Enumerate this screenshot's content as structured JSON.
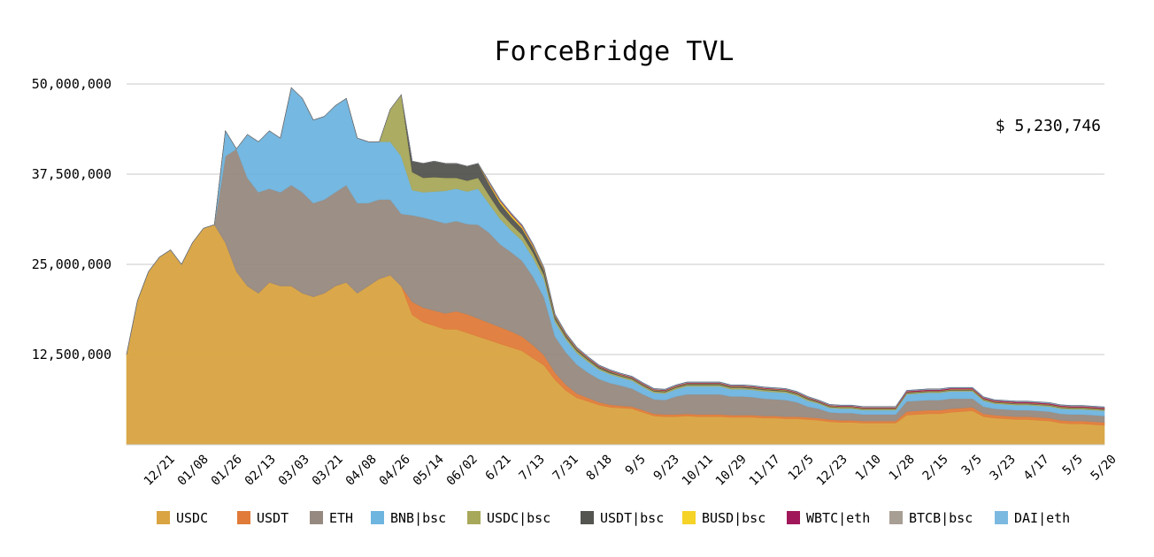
{
  "chart_data": {
    "type": "area",
    "stacked": true,
    "title": "ForceBridge TVL",
    "total_label": "$ 5,230,746",
    "xlabel": "",
    "ylabel": "",
    "ylim": [
      0,
      50000000
    ],
    "yticks": [
      12500000,
      25000000,
      37500000,
      50000000
    ],
    "ytick_labels": [
      "12,500,000",
      "25,000,000",
      "37,500,000",
      "50,000,000"
    ],
    "x_tick_labels": [
      "12/21",
      "01/08",
      "01/26",
      "02/13",
      "03/03",
      "03/21",
      "04/08",
      "04/26",
      "05/14",
      "06/02",
      "6/21",
      "7/13",
      "7/31",
      "8/18",
      "9/5",
      "9/23",
      "10/11",
      "10/29",
      "11/17",
      "12/5",
      "12/23",
      "1/10",
      "1/28",
      "2/15",
      "3/5",
      "3/23",
      "4/17",
      "5/5",
      "5/20"
    ],
    "grid": true,
    "legend_position": "bottom",
    "x": [
      "12/05",
      "12/09",
      "12/13",
      "12/17",
      "12/21",
      "12/25",
      "12/29",
      "01/02",
      "01/04",
      "01/06",
      "01/08",
      "01/12",
      "01/16",
      "01/20",
      "01/24",
      "01/26",
      "01/30",
      "02/03",
      "02/07",
      "02/11",
      "02/13",
      "02/17",
      "02/21",
      "02/25",
      "02/27",
      "03/01",
      "03/03",
      "03/07",
      "03/11",
      "03/15",
      "03/21",
      "03/27",
      "04/02",
      "04/08",
      "04/12",
      "04/16",
      "04/20",
      "04/24",
      "04/26",
      "04/28",
      "05/02",
      "05/06",
      "05/10",
      "05/14",
      "05/20",
      "05/26",
      "06/02",
      "06/10",
      "06/21",
      "07/01",
      "07/13",
      "07/22",
      "07/31",
      "08/09",
      "08/18",
      "08/27",
      "09/05",
      "09/14",
      "09/23",
      "10/02",
      "10/11",
      "10/20",
      "10/29",
      "11/07",
      "11/17",
      "11/26",
      "12/05",
      "12/14",
      "12/23",
      "01/01",
      "01/05",
      "01/10",
      "01/19",
      "01/28",
      "02/06",
      "02/15",
      "02/20",
      "02/25",
      "03/01",
      "03/05",
      "03/14",
      "03/23",
      "04/01",
      "04/10",
      "04/17",
      "04/24",
      "05/01",
      "05/05",
      "05/12",
      "05/20"
    ],
    "series": [
      {
        "name": "USDC",
        "color": "#D9A441",
        "values": [
          12500000,
          20000000,
          24000000,
          26000000,
          27000000,
          25000000,
          28000000,
          30000000,
          30500000,
          28000000,
          24000000,
          22000000,
          21000000,
          22500000,
          22000000,
          22000000,
          21000000,
          20500000,
          21000000,
          22000000,
          22500000,
          21000000,
          22000000,
          23000000,
          23500000,
          22000000,
          18000000,
          17000000,
          16500000,
          16000000,
          16000000,
          15500000,
          15000000,
          14500000,
          14000000,
          13500000,
          13000000,
          12000000,
          11000000,
          9000000,
          7500000,
          6500000,
          6000000,
          5500000,
          5200000,
          5100000,
          5000000,
          4500000,
          4000000,
          3900000,
          3900000,
          4000000,
          3900000,
          3900000,
          3900000,
          3800000,
          3800000,
          3800000,
          3700000,
          3700000,
          3600000,
          3600000,
          3500000,
          3400000,
          3200000,
          3100000,
          3100000,
          3000000,
          3000000,
          3000000,
          3000000,
          4100000,
          4200000,
          4300000,
          4300000,
          4500000,
          4600000,
          4700000,
          3900000,
          3700000,
          3600000,
          3500000,
          3500000,
          3400000,
          3300000,
          3000000,
          2900000,
          2900000,
          2800000,
          2700000
        ]
      },
      {
        "name": "USDT",
        "color": "#E07B39",
        "values": [
          0,
          0,
          0,
          0,
          0,
          0,
          0,
          0,
          0,
          0,
          0,
          0,
          0,
          0,
          0,
          0,
          0,
          0,
          0,
          0,
          0,
          0,
          0,
          0,
          0,
          0,
          1800000,
          2000000,
          2100000,
          2200000,
          2500000,
          2600000,
          2500000,
          2400000,
          2300000,
          2200000,
          2000000,
          1800000,
          1400000,
          1000000,
          800000,
          600000,
          500000,
          400000,
          350000,
          300000,
          300000,
          300000,
          300000,
          300000,
          300000,
          300000,
          300000,
          300000,
          300000,
          300000,
          300000,
          300000,
          300000,
          300000,
          300000,
          300000,
          300000,
          300000,
          300000,
          300000,
          300000,
          300000,
          300000,
          300000,
          300000,
          500000,
          500000,
          500000,
          500000,
          500000,
          500000,
          500000,
          400000,
          400000,
          400000,
          400000,
          400000,
          400000,
          400000,
          400000,
          400000,
          400000,
          400000,
          400000
        ]
      },
      {
        "name": "ETH",
        "color": "#968A80",
        "values": [
          0,
          0,
          0,
          0,
          0,
          0,
          0,
          0,
          0,
          12000000,
          17000000,
          15000000,
          14000000,
          13000000,
          13000000,
          14000000,
          14000000,
          13000000,
          13000000,
          13000000,
          13500000,
          12500000,
          11500000,
          11000000,
          10500000,
          10000000,
          12000000,
          12500000,
          12500000,
          12500000,
          12500000,
          12500000,
          13000000,
          12500000,
          11500000,
          11000000,
          10500000,
          9500000,
          8000000,
          5000000,
          4500000,
          4000000,
          3500000,
          3200000,
          3000000,
          2800000,
          2500000,
          2200000,
          2000000,
          2000000,
          2500000,
          2700000,
          2800000,
          2800000,
          2800000,
          2600000,
          2600000,
          2500000,
          2400000,
          2300000,
          2300000,
          2000000,
          1500000,
          1300000,
          1000000,
          1000000,
          1000000,
          900000,
          900000,
          900000,
          900000,
          1400000,
          1400000,
          1400000,
          1400000,
          1400000,
          1300000,
          1200000,
          1000000,
          900000,
          900000,
          900000,
          900000,
          900000,
          900000,
          900000,
          900000,
          900000,
          900000,
          900000
        ]
      },
      {
        "name": "BNB|bsc",
        "color": "#6EB5E0",
        "values": [
          0,
          0,
          0,
          0,
          0,
          0,
          0,
          0,
          0,
          3500000,
          0,
          6000000,
          7000000,
          8000000,
          7500000,
          13500000,
          13000000,
          11500000,
          11500000,
          12000000,
          12000000,
          9000000,
          8500000,
          8000000,
          8000000,
          8000000,
          3500000,
          3500000,
          4000000,
          4500000,
          4500000,
          4500000,
          5000000,
          4000000,
          3500000,
          3000000,
          2800000,
          2600000,
          2500000,
          2000000,
          1800000,
          1600000,
          1500000,
          1300000,
          1200000,
          1100000,
          1100000,
          1000000,
          900000,
          900000,
          1000000,
          1100000,
          1100000,
          1100000,
          1100000,
          1000000,
          1000000,
          1000000,
          1000000,
          1000000,
          1000000,
          900000,
          800000,
          700000,
          600000,
          600000,
          600000,
          600000,
          600000,
          600000,
          600000,
          1000000,
          1000000,
          1000000,
          1000000,
          1000000,
          1000000,
          1000000,
          800000,
          700000,
          700000,
          700000,
          700000,
          700000,
          700000,
          700000,
          700000,
          700000,
          700000,
          700000
        ]
      },
      {
        "name": "USDC|bsc",
        "color": "#A8A85A",
        "values": [
          0,
          0,
          0,
          0,
          0,
          0,
          0,
          0,
          0,
          0,
          0,
          0,
          0,
          0,
          0,
          0,
          0,
          0,
          0,
          0,
          0,
          0,
          0,
          0,
          4500000,
          8500000,
          2500000,
          2000000,
          2000000,
          1800000,
          1500000,
          1500000,
          1500000,
          1200000,
          1000000,
          900000,
          800000,
          700000,
          600000,
          400000,
          300000,
          300000,
          250000,
          200000,
          200000,
          200000,
          200000,
          200000,
          200000,
          200000,
          200000,
          200000,
          200000,
          200000,
          200000,
          200000,
          200000,
          200000,
          200000,
          200000,
          200000,
          200000,
          200000,
          150000,
          150000,
          150000,
          150000,
          150000,
          150000,
          150000,
          150000,
          150000,
          150000,
          150000,
          150000,
          150000,
          150000,
          150000,
          150000,
          150000,
          150000,
          150000,
          150000,
          150000,
          150000,
          150000,
          150000,
          150000,
          150000,
          150000
        ]
      },
      {
        "name": "USDT|bsc",
        "color": "#545450",
        "values": [
          0,
          0,
          0,
          0,
          0,
          0,
          0,
          0,
          0,
          0,
          0,
          0,
          0,
          0,
          0,
          0,
          0,
          0,
          0,
          0,
          0,
          0,
          0,
          0,
          0,
          0,
          1500000,
          2000000,
          2200000,
          2000000,
          2000000,
          2000000,
          2000000,
          1500000,
          1200000,
          1000000,
          900000,
          800000,
          700000,
          400000,
          300000,
          250000,
          200000,
          200000,
          200000,
          150000,
          150000,
          150000,
          150000,
          150000,
          150000,
          150000,
          150000,
          150000,
          150000,
          150000,
          150000,
          150000,
          150000,
          150000,
          150000,
          150000,
          150000,
          100000,
          100000,
          100000,
          100000,
          100000,
          100000,
          100000,
          100000,
          100000,
          100000,
          100000,
          100000,
          100000,
          100000,
          100000,
          100000,
          100000,
          100000,
          100000,
          100000,
          100000,
          100000,
          100000,
          100000,
          100000,
          100000,
          100000
        ]
      },
      {
        "name": "BUSD|bsc",
        "color": "#F5D327",
        "values": [
          0,
          0,
          0,
          0,
          0,
          0,
          0,
          0,
          0,
          0,
          0,
          0,
          0,
          0,
          0,
          0,
          0,
          0,
          0,
          0,
          0,
          0,
          0,
          0,
          0,
          0,
          0,
          0,
          0,
          0,
          0,
          0,
          0,
          200000,
          300000,
          300000,
          250000,
          200000,
          150000,
          100000,
          80000,
          70000,
          60000,
          50000,
          50000,
          50000,
          50000,
          50000,
          50000,
          50000,
          50000,
          50000,
          50000,
          50000,
          50000,
          50000,
          50000,
          50000,
          50000,
          50000,
          50000,
          40000,
          40000,
          40000,
          40000,
          40000,
          40000,
          40000,
          40000,
          40000,
          40000,
          40000,
          40000,
          40000,
          40000,
          40000,
          40000,
          40000,
          40000,
          40000,
          40000,
          40000,
          40000,
          40000,
          40000,
          40000,
          40000,
          40000,
          40000,
          40000
        ]
      },
      {
        "name": "WBTC|eth",
        "color": "#A0185A",
        "values": [
          0,
          0,
          0,
          0,
          0,
          0,
          0,
          0,
          0,
          0,
          0,
          0,
          0,
          0,
          0,
          0,
          0,
          0,
          0,
          0,
          0,
          0,
          0,
          0,
          0,
          0,
          0,
          0,
          0,
          0,
          0,
          0,
          0,
          100000,
          120000,
          130000,
          130000,
          120000,
          100000,
          100000,
          100000,
          100000,
          100000,
          100000,
          100000,
          100000,
          100000,
          100000,
          100000,
          100000,
          100000,
          100000,
          100000,
          100000,
          100000,
          100000,
          100000,
          100000,
          100000,
          100000,
          100000,
          100000,
          100000,
          100000,
          100000,
          100000,
          100000,
          100000,
          100000,
          100000,
          100000,
          150000,
          150000,
          150000,
          150000,
          150000,
          150000,
          150000,
          150000,
          150000,
          150000,
          150000,
          150000,
          150000,
          150000,
          150000,
          150000,
          150000,
          150000,
          150000
        ]
      },
      {
        "name": "BTCB|bsc",
        "color": "#A89F94",
        "values": [
          0,
          0,
          0,
          0,
          0,
          0,
          0,
          0,
          0,
          0,
          0,
          0,
          0,
          0,
          0,
          0,
          0,
          0,
          0,
          0,
          0,
          0,
          0,
          0,
          0,
          0,
          0,
          0,
          0,
          0,
          0,
          0,
          0,
          50000,
          50000,
          50000,
          50000,
          50000,
          50000,
          50000,
          50000,
          50000,
          50000,
          50000,
          50000,
          50000,
          50000,
          50000,
          50000,
          50000,
          50000,
          50000,
          50000,
          50000,
          50000,
          50000,
          50000,
          50000,
          50000,
          50000,
          50000,
          50000,
          50000,
          50000,
          50000,
          50000,
          50000,
          50000,
          50000,
          50000,
          50000,
          50000,
          50000,
          50000,
          50000,
          50000,
          50000,
          50000,
          50000,
          50000,
          50000,
          50000,
          50000,
          50000,
          50000,
          50000,
          50000,
          50000,
          50000,
          50000
        ]
      },
      {
        "name": "DAI|eth",
        "color": "#7CB9E0",
        "values": [
          0,
          0,
          0,
          0,
          0,
          0,
          0,
          0,
          0,
          0,
          0,
          0,
          0,
          0,
          0,
          0,
          0,
          0,
          0,
          0,
          0,
          0,
          0,
          0,
          0,
          0,
          0,
          0,
          0,
          0,
          0,
          0,
          0,
          50000,
          50000,
          50000,
          50000,
          50000,
          50000,
          50000,
          50000,
          50000,
          50000,
          50000,
          50000,
          50000,
          50000,
          50000,
          50000,
          50000,
          50000,
          50000,
          50000,
          50000,
          50000,
          50000,
          50000,
          50000,
          50000,
          50000,
          50000,
          50000,
          50000,
          50000,
          50000,
          50000,
          50000,
          50000,
          50000,
          50000,
          50000,
          50000,
          50000,
          50000,
          50000,
          50000,
          50000,
          50000,
          50000,
          50000,
          50000,
          50000,
          50000,
          50000,
          50000,
          50000,
          50000,
          50000,
          50000,
          50000
        ]
      }
    ]
  }
}
